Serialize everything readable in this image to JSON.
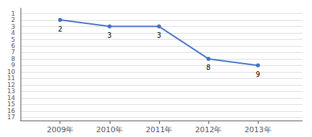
{
  "chart_data": {
    "type": "line",
    "x": [
      2009,
      2010,
      2011,
      2012,
      2013
    ],
    "values": [
      2,
      3,
      3,
      8,
      9
    ],
    "color": "#4472C4",
    "marker": "circle",
    "data_labels": true,
    "xlim": [
      2008.2,
      2013.9
    ],
    "xticks": [
      {
        "value": 2009,
        "label": "2009年"
      },
      {
        "value": 2010,
        "label": "2010年"
      },
      {
        "value": 2011,
        "label": "2011年"
      },
      {
        "value": 2012,
        "label": "2012年"
      },
      {
        "value": 2013,
        "label": "2013年"
      }
    ],
    "ylim": [
      17.5,
      0.2
    ],
    "yticks": [
      1,
      2,
      3,
      4,
      5,
      6,
      7,
      8,
      9,
      10,
      11,
      12,
      13,
      14,
      15,
      16,
      17
    ],
    "grid": true
  }
}
